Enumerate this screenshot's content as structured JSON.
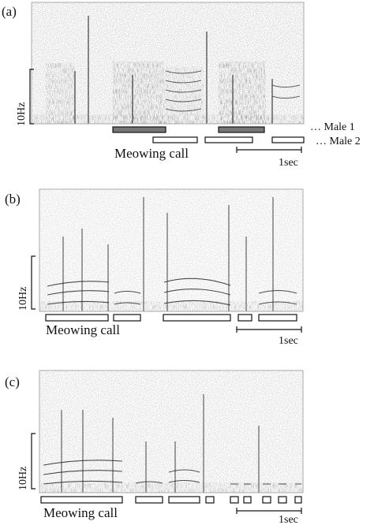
{
  "panels": [
    {
      "label": "(a)",
      "axis_label": "10Hz",
      "legend": [
        "… Male 1",
        "… Male 2"
      ],
      "call_label": "Meowing call",
      "scale_label": "1sec"
    },
    {
      "label": "(b)",
      "axis_label": "10Hz",
      "call_label": "Meowing call",
      "scale_label": "1sec"
    },
    {
      "label": "(c)",
      "axis_label": "10Hz",
      "call_label": "Meowing call",
      "scale_label": "1sec"
    }
  ]
}
